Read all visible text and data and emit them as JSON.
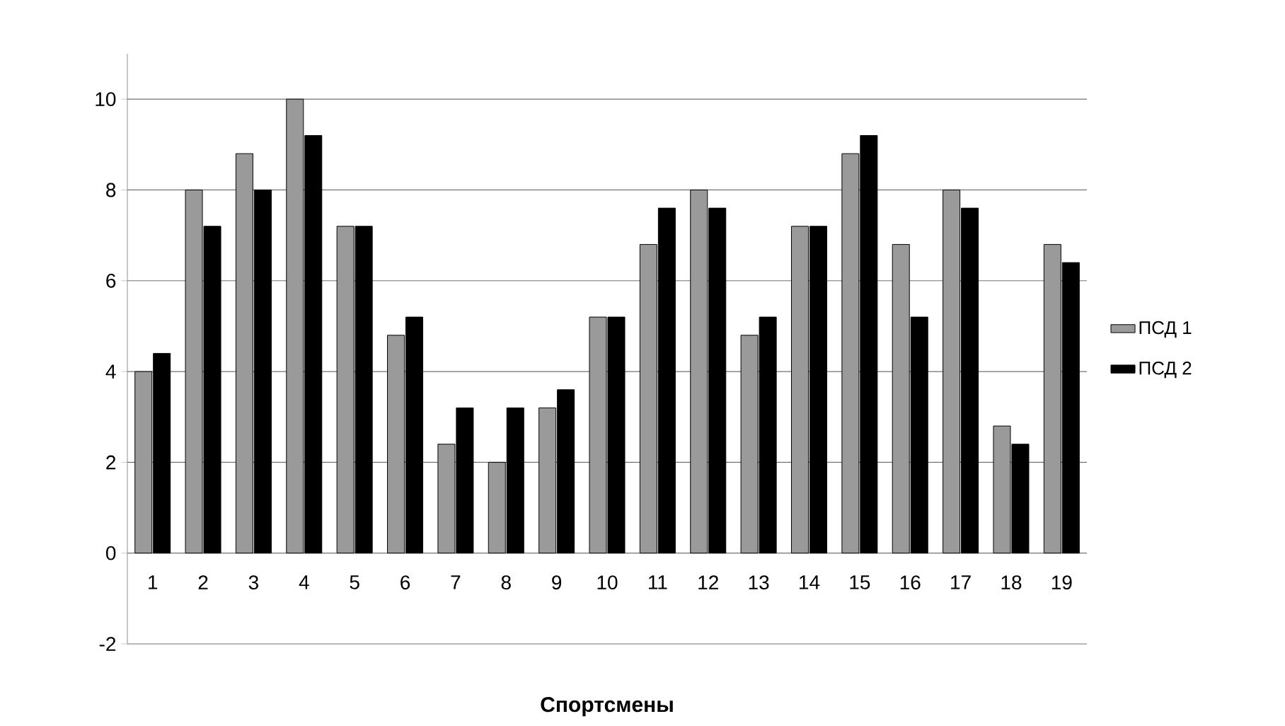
{
  "chart_data": {
    "type": "bar",
    "xlabel": "Спортсмены",
    "categories": [
      "1",
      "2",
      "3",
      "4",
      "5",
      "6",
      "7",
      "8",
      "9",
      "10",
      "11",
      "12",
      "13",
      "14",
      "15",
      "16",
      "17",
      "18",
      "19"
    ],
    "series": [
      {
        "name": "ПСД 1",
        "color": "#9a9a9a",
        "values": [
          4.0,
          8.0,
          8.8,
          10.0,
          7.2,
          4.8,
          2.4,
          2.0,
          3.2,
          5.2,
          6.8,
          8.0,
          4.8,
          7.2,
          8.8,
          6.8,
          8.0,
          2.8,
          6.8
        ]
      },
      {
        "name": "ПСД 2",
        "color": "#000000",
        "values": [
          4.4,
          7.2,
          8.0,
          9.2,
          7.2,
          5.2,
          3.2,
          3.2,
          3.6,
          5.2,
          7.6,
          7.6,
          5.2,
          7.2,
          9.2,
          5.2,
          7.6,
          2.4,
          6.4
        ]
      }
    ],
    "ylim": [
      -2,
      11
    ],
    "yticks": [
      -2,
      0,
      2,
      4,
      6,
      8,
      10
    ],
    "grid": "y",
    "legend": "right"
  }
}
